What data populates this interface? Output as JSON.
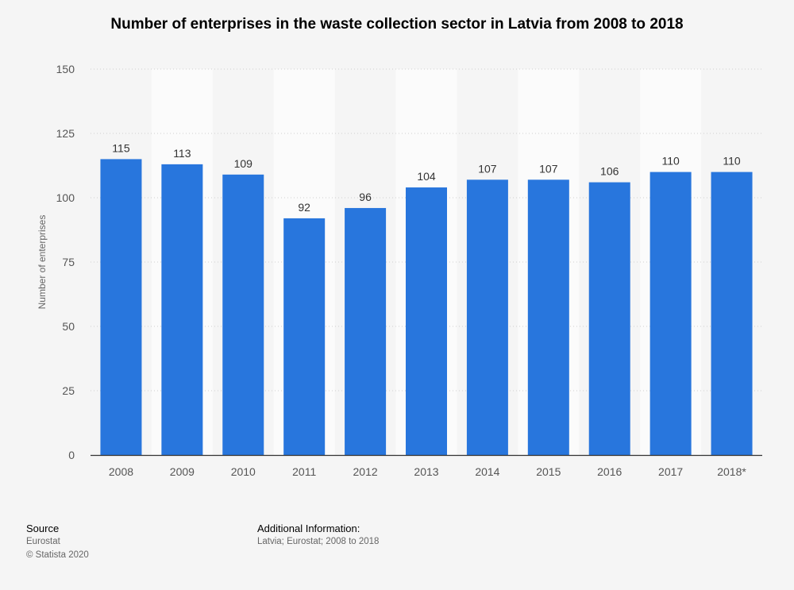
{
  "chart_data": {
    "type": "bar",
    "title": "Number of enterprises in the waste collection sector in Latvia from 2008 to 2018",
    "ylabel": "Number of enterprises",
    "xlabel": "",
    "categories": [
      "2008",
      "2009",
      "2010",
      "2011",
      "2012",
      "2013",
      "2014",
      "2015",
      "2016",
      "2017",
      "2018*"
    ],
    "values": [
      115,
      113,
      109,
      92,
      96,
      104,
      107,
      107,
      106,
      110,
      110
    ],
    "ylim": [
      0,
      150
    ],
    "yticks": [
      0,
      25,
      50,
      75,
      100,
      125,
      150
    ],
    "grid": true,
    "legend": "none",
    "bar_color": "#2876dd"
  },
  "footer": {
    "source_heading": "Source",
    "source_name": "Eurostat",
    "copyright": "© Statista 2020",
    "info_heading": "Additional Information:",
    "info_text": "Latvia; Eurostat; 2008 to 2018"
  }
}
